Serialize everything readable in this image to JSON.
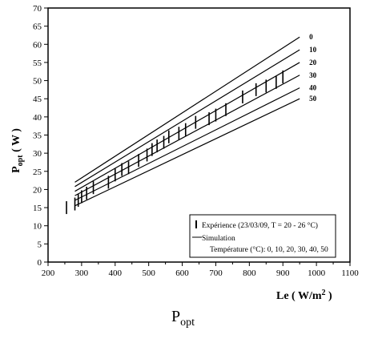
{
  "chart_data": {
    "type": "line",
    "xlabel": {
      "main": "Le ( W/m",
      "sup": "2",
      "tail": " )"
    },
    "ylabel": {
      "main": "P",
      "sub": "opt",
      "tail": " ( W )"
    },
    "xlim": [
      200,
      1100
    ],
    "ylim": [
      0,
      70
    ],
    "xticks": [
      200,
      300,
      400,
      500,
      600,
      700,
      800,
      900,
      1000,
      1100
    ],
    "yticks": [
      0,
      5,
      10,
      15,
      20,
      25,
      30,
      35,
      40,
      45,
      50,
      55,
      60,
      65,
      70
    ],
    "grid": false,
    "series": [
      {
        "name": "0",
        "x": [
          280,
          950
        ],
        "y": [
          22.0,
          62.0
        ]
      },
      {
        "name": "10",
        "x": [
          280,
          950
        ],
        "y": [
          20.8,
          58.5
        ]
      },
      {
        "name": "20",
        "x": [
          280,
          950
        ],
        "y": [
          19.5,
          55.0
        ]
      },
      {
        "name": "30",
        "x": [
          280,
          950
        ],
        "y": [
          18.3,
          51.5
        ]
      },
      {
        "name": "40",
        "x": [
          280,
          950
        ],
        "y": [
          17.0,
          48.0
        ]
      },
      {
        "name": "50",
        "x": [
          280,
          950
        ],
        "y": [
          15.5,
          45.0
        ]
      }
    ],
    "experiment": [
      {
        "x": 255,
        "y": 15.0
      },
      {
        "x": 280,
        "y": 16.0
      },
      {
        "x": 290,
        "y": 17.0
      },
      {
        "x": 300,
        "y": 18.0
      },
      {
        "x": 315,
        "y": 19.0
      },
      {
        "x": 335,
        "y": 20.5
      },
      {
        "x": 380,
        "y": 22.0
      },
      {
        "x": 400,
        "y": 24.0
      },
      {
        "x": 420,
        "y": 25.5
      },
      {
        "x": 440,
        "y": 26.0
      },
      {
        "x": 470,
        "y": 28.0
      },
      {
        "x": 495,
        "y": 29.5
      },
      {
        "x": 510,
        "y": 31.0
      },
      {
        "x": 525,
        "y": 32.0
      },
      {
        "x": 545,
        "y": 33.0
      },
      {
        "x": 560,
        "y": 34.5
      },
      {
        "x": 590,
        "y": 35.5
      },
      {
        "x": 610,
        "y": 36.5
      },
      {
        "x": 640,
        "y": 38.5
      },
      {
        "x": 680,
        "y": 39.5
      },
      {
        "x": 700,
        "y": 40.5
      },
      {
        "x": 730,
        "y": 42.0
      },
      {
        "x": 780,
        "y": 45.5
      },
      {
        "x": 820,
        "y": 47.5
      },
      {
        "x": 850,
        "y": 48.5
      },
      {
        "x": 880,
        "y": 49.5
      },
      {
        "x": 900,
        "y": 51.0
      }
    ],
    "legend": {
      "position": "bottom-right",
      "experience": "Expérience (23/03/09,  T = 20 - 26 °C)",
      "simulation": "Simulation",
      "temperature": "Température (°C): 0, 10, 20, 30, 40, 50"
    }
  },
  "caption": {
    "main": "P",
    "sub": "opt"
  }
}
